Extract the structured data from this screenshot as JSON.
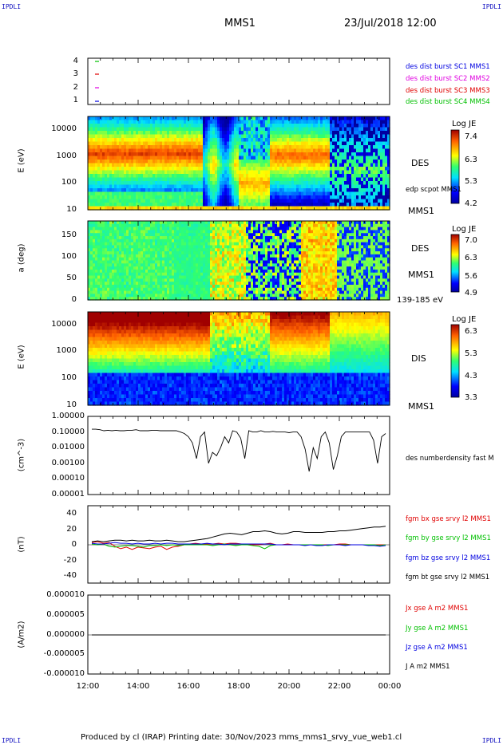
{
  "corners": {
    "tl": "IPDLI",
    "tr": "IPDLI",
    "bl": "IPDLI",
    "br": "IPDLI"
  },
  "header": {
    "spacecraft": "MMS1",
    "date": "23/Jul/2018 12:00"
  },
  "footer": {
    "text": "Produced by cl (IRAP)   Printing date: 30/Nov/2023   mms_mms1_srvy_vue_web1.cl"
  },
  "x_axis": {
    "ticks": [
      "12:00",
      "14:00",
      "16:00",
      "18:00",
      "20:00",
      "22:00",
      "00:00"
    ]
  },
  "colors": {
    "blue": "#0000e0",
    "magenta": "#e000e0",
    "red": "#e00000",
    "green": "#00c000",
    "black": "#000000"
  },
  "chart_data": [
    {
      "type": "scatter",
      "panel": "burst",
      "yticks": [
        "1",
        "2",
        "3",
        "4"
      ],
      "legend": [
        {
          "text": "des dist burst SC1 MMS1",
          "color": "#0000e0"
        },
        {
          "text": "des dist burst SC2 MMS2",
          "color": "#e000e0"
        },
        {
          "text": "des dist burst SC3 MMS3",
          "color": "#e00000"
        },
        {
          "text": "des dist burst SC4 MMS4",
          "color": "#00c000"
        }
      ]
    },
    {
      "type": "heatmap",
      "panel": "des-energy",
      "ylabel": "E (eV)",
      "yticks": [
        "10",
        "100",
        "1000",
        "10000"
      ],
      "side_label": "DES",
      "overlay_label": "edp scpot MMS1",
      "bottom_label": "MMS1",
      "colorbar": {
        "title": "Log JE",
        "ticks": [
          "7.4",
          "6.3",
          "5.3",
          "4.2"
        ]
      }
    },
    {
      "type": "heatmap",
      "panel": "des-pitch",
      "ylabel": "a (deg)",
      "yticks": [
        "0",
        "50",
        "100",
        "150"
      ],
      "side_label": "DES",
      "bottom_label": "MMS1",
      "energy_range": "139-185 eV",
      "colorbar": {
        "title": "Log JE",
        "ticks": [
          "7.0",
          "6.3",
          "5.6",
          "4.9"
        ]
      }
    },
    {
      "type": "heatmap",
      "panel": "dis-energy",
      "ylabel": "E (eV)",
      "yticks": [
        "10",
        "100",
        "1000",
        "10000"
      ],
      "side_label": "DIS",
      "bottom_label": "MMS1",
      "colorbar": {
        "title": "Log JE",
        "ticks": [
          "6.3",
          "5.3",
          "4.3",
          "3.3"
        ]
      }
    },
    {
      "type": "line",
      "panel": "density",
      "ylabel": "(cm^-3)",
      "yticks": [
        "1.00000",
        "0.10000",
        "0.01000",
        "0.00100",
        "0.00010",
        "0.00001"
      ],
      "legend": [
        {
          "text": "des numberdensity fast M",
          "color": "#000000"
        }
      ],
      "series": [
        {
          "name": "des numberdensity fast M",
          "values": [
            0.15,
            0.15,
            0.14,
            0.12,
            0.13,
            0.12,
            0.13,
            0.12,
            0.12,
            0.13,
            0.13,
            0.14,
            0.12,
            0.12,
            0.12,
            0.13,
            0.13,
            0.12,
            0.12,
            0.12,
            0.12,
            0.12,
            0.1,
            0.08,
            0.05,
            0.02,
            0.002,
            0.05,
            0.1,
            0.001,
            0.005,
            0.003,
            0.01,
            0.05,
            0.02,
            0.12,
            0.1,
            0.04,
            0.002,
            0.12,
            0.1,
            0.1,
            0.12,
            0.1,
            0.1,
            0.11,
            0.1,
            0.1,
            0.1,
            0.09,
            0.1,
            0.1,
            0.05,
            0.008,
            0.0003,
            0.01,
            0.002,
            0.05,
            0.1,
            0.02,
            0.0004,
            0.003,
            0.05,
            0.1,
            0.1,
            0.1,
            0.1,
            0.1,
            0.1,
            0.1,
            0.03,
            0.001,
            0.05,
            0.08
          ]
        }
      ]
    },
    {
      "type": "line",
      "panel": "magnetic-field",
      "ylabel": "(nT)",
      "yticks": [
        "40",
        "20",
        "0",
        "-20",
        "-40"
      ],
      "ylim": [
        -50,
        50
      ],
      "legend": [
        {
          "text": "fgm bx gse srvy l2 MMS1",
          "color": "#e00000"
        },
        {
          "text": "fgm by gse srvy l2 MMS1",
          "color": "#00c000"
        },
        {
          "text": "fgm bz gse srvy l2 MMS1",
          "color": "#0000e0"
        },
        {
          "text": "fgm bt gse srvy l2 MMS1",
          "color": "#000000"
        }
      ],
      "series": [
        {
          "name": "fgm bx gse srvy l2 MMS1",
          "values": [
            3,
            4,
            2,
            3,
            -2,
            -5,
            -3,
            -6,
            -3,
            -4,
            -5,
            -3,
            -2,
            -6,
            -3,
            -2,
            0,
            1,
            2,
            1,
            1,
            1,
            2,
            1,
            2,
            2,
            1,
            1,
            0,
            0,
            1,
            2,
            0,
            0,
            1,
            0,
            0,
            0,
            0,
            0,
            0,
            0,
            0,
            1,
            1,
            0,
            0,
            0,
            0,
            0,
            0,
            0
          ]
        },
        {
          "name": "fgm by gse srvy l2 MMS1",
          "values": [
            1,
            0,
            1,
            -2,
            -3,
            -2,
            -1,
            -1,
            -2,
            -3,
            -1,
            -1,
            0,
            -1,
            0,
            -1,
            0,
            0,
            0,
            0,
            0,
            -1,
            0,
            1,
            0,
            -1,
            0,
            0,
            -1,
            -2,
            -5,
            -1,
            0,
            0,
            0,
            0,
            0,
            0,
            0,
            0,
            0,
            -1,
            0,
            0,
            0,
            0,
            0,
            0,
            0,
            0,
            -1,
            0
          ]
        },
        {
          "name": "fgm bz gse srvy l2 MMS1",
          "values": [
            2,
            1,
            1,
            2,
            3,
            2,
            2,
            1,
            2,
            1,
            1,
            2,
            1,
            2,
            2,
            1,
            1,
            1,
            1,
            1,
            2,
            1,
            1,
            0,
            1,
            1,
            1,
            1,
            1,
            1,
            1,
            1,
            0,
            0,
            0,
            0,
            0,
            -1,
            0,
            -1,
            -1,
            0,
            0,
            0,
            -1,
            0,
            0,
            0,
            -1,
            -1,
            -2,
            -1
          ]
        },
        {
          "name": "fgm bt gse srvy l2 MMS1",
          "values": [
            4,
            5,
            4,
            5,
            6,
            6,
            5,
            6,
            5,
            5,
            6,
            5,
            5,
            6,
            5,
            4,
            4,
            5,
            6,
            7,
            8,
            10,
            12,
            14,
            15,
            14,
            13,
            15,
            17,
            17,
            18,
            17,
            15,
            14,
            15,
            17,
            17,
            16,
            16,
            16,
            16,
            17,
            17,
            18,
            18,
            19,
            20,
            21,
            22,
            23,
            23,
            24
          ]
        }
      ]
    },
    {
      "type": "line",
      "panel": "current-density",
      "ylabel": "(A/m2)",
      "yticks": [
        "0.000010",
        "0.000005",
        "0.000000",
        "-0.000005",
        "-0.000010"
      ],
      "ylim": [
        -1e-05,
        1e-05
      ],
      "legend": [
        {
          "text": "Jx gse A m2 MMS1",
          "color": "#e00000"
        },
        {
          "text": "Jy gse A m2 MMS1",
          "color": "#00c000"
        },
        {
          "text": "Jz gse A m2 MMS1",
          "color": "#0000e0"
        },
        {
          "text": "J A m2 MMS1",
          "color": "#000000"
        }
      ],
      "series": [
        {
          "name": "J A m2 MMS1",
          "values": [
            0,
            0,
            0,
            0,
            0,
            0,
            0,
            0,
            0,
            0,
            0,
            0,
            0,
            0,
            0,
            0,
            0,
            0,
            0,
            0,
            0,
            0,
            0,
            0,
            0,
            0,
            0,
            0,
            0,
            0
          ]
        }
      ]
    }
  ]
}
